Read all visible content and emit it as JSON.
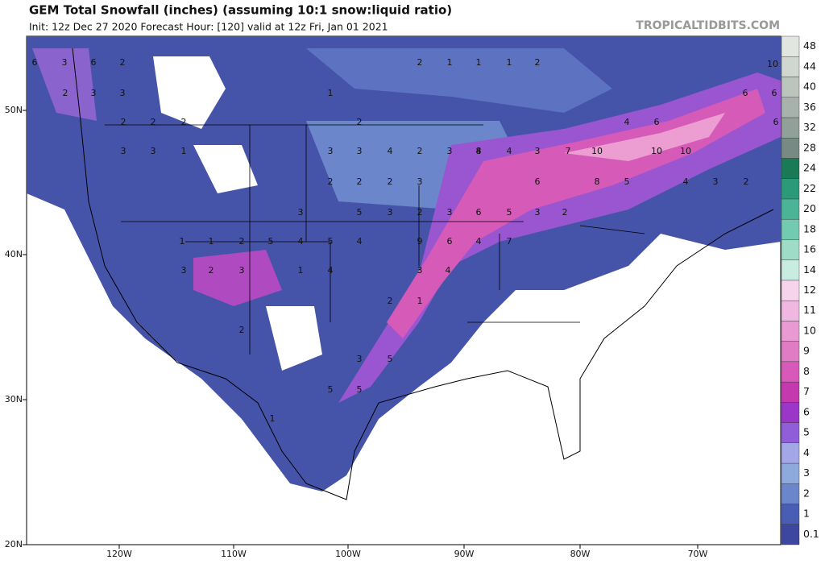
{
  "header": {
    "title": "GEM Total Snowfall (inches) (assuming 10:1 snow:liquid ratio)",
    "subtitle": "Init: 12z Dec 27 2020   Forecast Hour: [120]   valid at 12z Fri, Jan 01 2021",
    "watermark": "TROPICALTIDBITS.COM"
  },
  "map": {
    "lat_labels": [
      "50N",
      "40N",
      "30N",
      "20N"
    ],
    "lon_labels": [
      "120W",
      "110W",
      "100W",
      "90W",
      "80W",
      "70W"
    ],
    "labels": [
      "6",
      "3",
      "6",
      "2",
      "2",
      "3",
      "3",
      "2",
      "2",
      "3",
      "3",
      "2",
      "1",
      "1",
      "2",
      "1",
      "1",
      "1",
      "2",
      "2",
      "3",
      "3",
      "4",
      "2",
      "3",
      "4",
      "2",
      "2",
      "2",
      "3",
      "3",
      "5",
      "3",
      "2",
      "3",
      "6",
      "5",
      "3",
      "2",
      "4",
      "5",
      "4",
      "9",
      "6",
      "4",
      "7",
      "8",
      "4",
      "3",
      "7",
      "10",
      "10",
      "10",
      "8",
      "5",
      "6",
      "6",
      "10",
      "6",
      "4",
      "3",
      "2",
      "4",
      "6",
      "6",
      "1",
      "1",
      "2",
      "5",
      "3",
      "2",
      "3",
      "1",
      "4",
      "3",
      "4",
      "2",
      "1",
      "3",
      "5",
      "5",
      "5",
      "2",
      "1"
    ]
  },
  "colorbar": {
    "levels": [
      "0.1",
      "1",
      "2",
      "3",
      "4",
      "5",
      "6",
      "7",
      "8",
      "9",
      "10",
      "11",
      "12",
      "14",
      "16",
      "18",
      "20",
      "22",
      "24",
      "28",
      "32",
      "36",
      "40",
      "44",
      "48"
    ],
    "colors": [
      "#3e47a0",
      "#4a5db5",
      "#6b86cb",
      "#8ea9dc",
      "#a3a7e8",
      "#8f5ed8",
      "#9a36c8",
      "#c43aae",
      "#d85ab8",
      "#e07cc4",
      "#e99ad2",
      "#f0b8e0",
      "#f6d4ec",
      "#c8ece0",
      "#9edcc8",
      "#72cbb0",
      "#4cb496",
      "#2a9a78",
      "#1a7a58",
      "#778a84",
      "#92a09a",
      "#a8b2ac",
      "#bcc4be",
      "#d0d6d0",
      "#e2e6e0"
    ]
  }
}
